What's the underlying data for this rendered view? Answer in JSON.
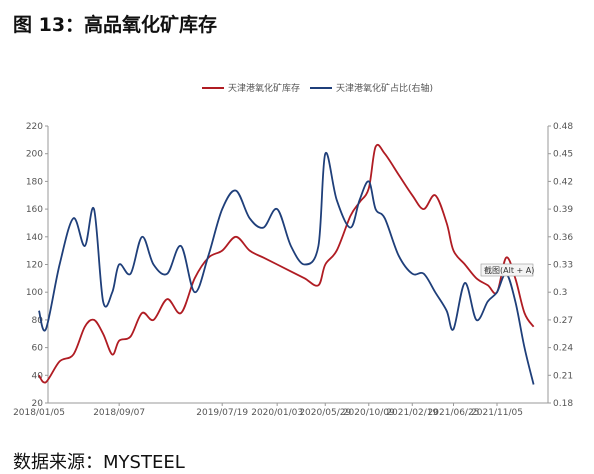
{
  "page": {
    "heading": "图 13：高品氧化矿库存",
    "source": "数据来源：MYSTEEL"
  },
  "tooltip": "截图(Alt + A)",
  "colors": {
    "series1": "#b01c23",
    "series2": "#1f3f7a",
    "axis": "#999999"
  },
  "chart_data": {
    "type": "line",
    "x_ticks": [
      "2018/01/05",
      "2018/09/07",
      "2019/07/19",
      "2020/01/03",
      "2020/05/29",
      "2020/10/09",
      "2021/02/19",
      "2021/06/25",
      "2021/11/05"
    ],
    "ylim_left": [
      20,
      220
    ],
    "ylim_right": [
      0.18,
      0.48
    ],
    "y_ticks_left": [
      "20",
      "40",
      "60",
      "80",
      "100",
      "120",
      "140",
      "160",
      "180",
      "200",
      "220"
    ],
    "y_ticks_right": [
      "0.18",
      "0.21",
      "0.24",
      "0.27",
      "0.3",
      "0.33",
      "0.36",
      "0.39",
      "0.42",
      "0.45",
      "0.48"
    ],
    "legend_position": "top",
    "grid": false,
    "series": [
      {
        "name": "天津港氧化矿库存",
        "axis": "left",
        "x": [
          "2018/01/05",
          "2018/01/26",
          "2018/03/09",
          "2018/04/20",
          "2018/05/25",
          "2018/06/22",
          "2018/07/20",
          "2018/08/17",
          "2018/09/07",
          "2018/10/12",
          "2018/11/16",
          "2018/12/21",
          "2019/02/01",
          "2019/03/15",
          "2019/04/26",
          "2019/06/07",
          "2019/07/19",
          "2019/08/30",
          "2019/10/11",
          "2019/11/22",
          "2020/01/03",
          "2020/02/14",
          "2020/03/27",
          "2020/05/08",
          "2020/05/29",
          "2020/07/03",
          "2020/08/14",
          "2020/09/11",
          "2020/10/09",
          "2020/10/30",
          "2020/11/27",
          "2021/01/08",
          "2021/02/19",
          "2021/03/26",
          "2021/04/30",
          "2021/06/04",
          "2021/06/25",
          "2021/07/30",
          "2021/09/03",
          "2021/10/08",
          "2021/11/05",
          "2021/12/03",
          "2021/12/31",
          "2022/01/28",
          "2022/02/25"
        ],
        "values": [
          40,
          35,
          50,
          55,
          75,
          80,
          70,
          55,
          65,
          68,
          85,
          80,
          95,
          85,
          110,
          125,
          130,
          140,
          130,
          125,
          120,
          115,
          110,
          105,
          120,
          130,
          155,
          165,
          175,
          205,
          200,
          185,
          170,
          160,
          170,
          150,
          130,
          120,
          110,
          105,
          100,
          125,
          110,
          85,
          75
        ]
      },
      {
        "name": "天津港氧化矿占比(右轴)",
        "axis": "right",
        "x": [
          "2018/01/05",
          "2018/01/26",
          "2018/03/09",
          "2018/04/20",
          "2018/05/25",
          "2018/06/22",
          "2018/07/20",
          "2018/08/17",
          "2018/09/07",
          "2018/10/12",
          "2018/11/16",
          "2018/12/21",
          "2019/02/01",
          "2019/03/15",
          "2019/04/26",
          "2019/06/07",
          "2019/07/19",
          "2019/08/30",
          "2019/10/11",
          "2019/11/22",
          "2020/01/03",
          "2020/02/14",
          "2020/03/27",
          "2020/05/08",
          "2020/05/29",
          "2020/07/03",
          "2020/08/14",
          "2020/09/11",
          "2020/10/09",
          "2020/10/30",
          "2020/11/27",
          "2021/01/08",
          "2021/02/19",
          "2021/03/26",
          "2021/04/30",
          "2021/06/04",
          "2021/06/25",
          "2021/07/30",
          "2021/09/03",
          "2021/10/08",
          "2021/11/05",
          "2021/12/03",
          "2021/12/31",
          "2022/01/28",
          "2022/02/25"
        ],
        "values": [
          0.28,
          0.26,
          0.33,
          0.38,
          0.35,
          0.39,
          0.29,
          0.3,
          0.33,
          0.32,
          0.36,
          0.33,
          0.32,
          0.35,
          0.3,
          0.34,
          0.39,
          0.41,
          0.38,
          0.37,
          0.39,
          0.35,
          0.33,
          0.35,
          0.45,
          0.4,
          0.37,
          0.4,
          0.42,
          0.39,
          0.38,
          0.34,
          0.32,
          0.32,
          0.3,
          0.28,
          0.26,
          0.31,
          0.27,
          0.29,
          0.3,
          0.32,
          0.29,
          0.24,
          0.2
        ]
      }
    ]
  }
}
